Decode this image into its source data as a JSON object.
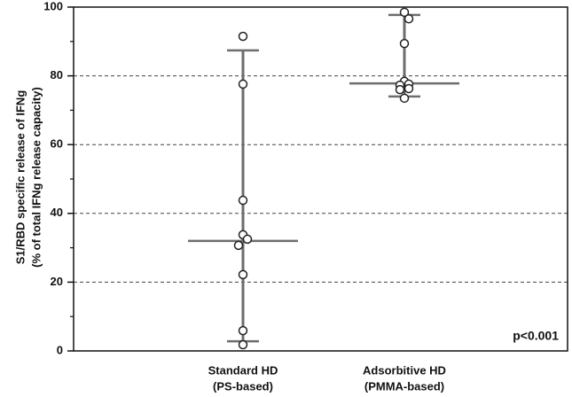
{
  "chart_data": {
    "type": "dotplot",
    "y_label": [
      "S1/RBD specific release of IFNg",
      "(% of total IFNg release capacity)"
    ],
    "categories": [
      [
        "Standard HD",
        "(PS-based)"
      ],
      [
        "Adsorbitive HD",
        "(PMMA-based)"
      ]
    ],
    "points": [
      [
        91.5,
        77.6,
        43.8,
        33.8,
        32.5,
        30.7,
        22.2,
        5.9,
        1.8
      ],
      [
        98.5,
        96.6,
        89.4,
        78.4,
        77.6,
        77.3,
        76.3,
        76.0,
        73.5
      ]
    ],
    "median": [
      32,
      77.8
    ],
    "whisker_low": [
      2.8,
      74.0
    ],
    "whisker_high": [
      87.4,
      97.7
    ],
    "color": "#6e6e6e",
    "annotation": "p<0.001",
    "ylim": [
      0,
      100
    ],
    "yticks": [
      0,
      20,
      40,
      60,
      80,
      100
    ],
    "grid": true
  }
}
